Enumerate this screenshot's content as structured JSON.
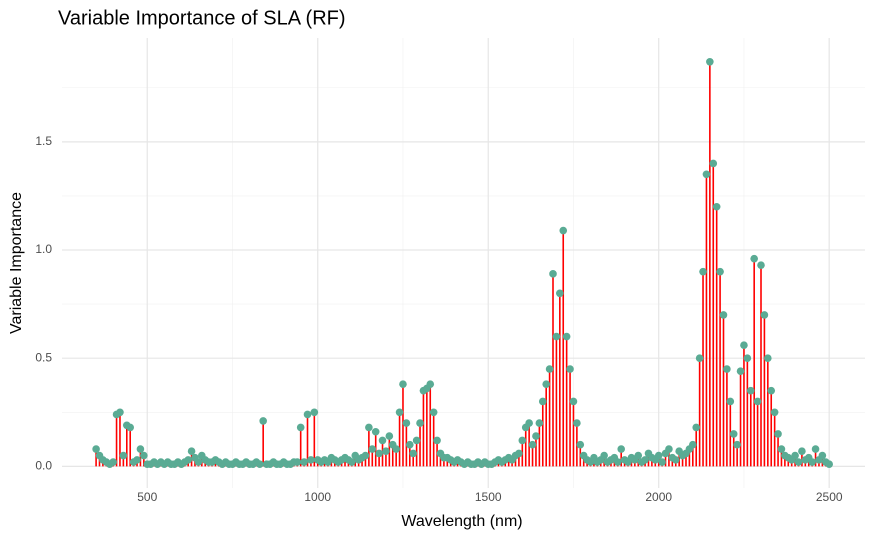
{
  "chart_data": {
    "type": "lollipop",
    "title": "Variable Importance of SLA (RF)",
    "x_label": "Wavelength (nm)",
    "y_label": "Variable Importance",
    "x": [
      350,
      360,
      370,
      380,
      390,
      400,
      410,
      420,
      430,
      440,
      450,
      460,
      470,
      480,
      490,
      500,
      510,
      520,
      530,
      540,
      550,
      560,
      570,
      580,
      590,
      600,
      610,
      620,
      630,
      640,
      650,
      660,
      670,
      680,
      690,
      700,
      710,
      720,
      730,
      740,
      750,
      760,
      770,
      780,
      790,
      800,
      810,
      820,
      830,
      840,
      850,
      860,
      870,
      880,
      890,
      900,
      910,
      920,
      930,
      940,
      950,
      960,
      970,
      980,
      990,
      1000,
      1010,
      1020,
      1030,
      1040,
      1050,
      1060,
      1070,
      1080,
      1090,
      1100,
      1110,
      1120,
      1130,
      1140,
      1150,
      1160,
      1170,
      1180,
      1190,
      1200,
      1210,
      1220,
      1230,
      1240,
      1250,
      1260,
      1270,
      1280,
      1290,
      1300,
      1310,
      1320,
      1330,
      1340,
      1350,
      1360,
      1370,
      1380,
      1390,
      1400,
      1410,
      1420,
      1430,
      1440,
      1450,
      1460,
      1470,
      1480,
      1490,
      1500,
      1510,
      1520,
      1530,
      1540,
      1550,
      1560,
      1570,
      1580,
      1590,
      1600,
      1610,
      1620,
      1630,
      1640,
      1650,
      1660,
      1670,
      1680,
      1690,
      1700,
      1710,
      1720,
      1730,
      1740,
      1750,
      1760,
      1770,
      1780,
      1790,
      1800,
      1810,
      1820,
      1830,
      1840,
      1850,
      1860,
      1870,
      1880,
      1890,
      1900,
      1910,
      1920,
      1930,
      1940,
      1950,
      1960,
      1970,
      1980,
      1990,
      2000,
      2010,
      2020,
      2030,
      2040,
      2050,
      2060,
      2070,
      2080,
      2090,
      2100,
      2110,
      2120,
      2130,
      2140,
      2150,
      2160,
      2170,
      2180,
      2190,
      2200,
      2210,
      2220,
      2230,
      2240,
      2250,
      2260,
      2270,
      2280,
      2290,
      2300,
      2310,
      2320,
      2330,
      2340,
      2350,
      2360,
      2370,
      2380,
      2390,
      2400,
      2410,
      2420,
      2430,
      2440,
      2450,
      2460,
      2470,
      2480,
      2490,
      2500
    ],
    "values": [
      0.08,
      0.05,
      0.03,
      0.02,
      0.01,
      0.02,
      0.24,
      0.25,
      0.05,
      0.19,
      0.18,
      0.02,
      0.03,
      0.08,
      0.05,
      0.01,
      0.01,
      0.02,
      0.01,
      0.02,
      0.01,
      0.02,
      0.01,
      0.01,
      0.02,
      0.01,
      0.02,
      0.03,
      0.07,
      0.04,
      0.02,
      0.05,
      0.03,
      0.02,
      0.02,
      0.03,
      0.02,
      0.01,
      0.02,
      0.01,
      0.01,
      0.02,
      0.01,
      0.01,
      0.02,
      0.01,
      0.01,
      0.02,
      0.01,
      0.21,
      0.01,
      0.01,
      0.02,
      0.01,
      0.01,
      0.02,
      0.01,
      0.01,
      0.02,
      0.02,
      0.18,
      0.02,
      0.24,
      0.03,
      0.25,
      0.03,
      0.02,
      0.03,
      0.02,
      0.04,
      0.03,
      0.02,
      0.03,
      0.04,
      0.03,
      0.02,
      0.05,
      0.03,
      0.04,
      0.05,
      0.18,
      0.08,
      0.16,
      0.06,
      0.12,
      0.07,
      0.14,
      0.1,
      0.08,
      0.25,
      0.38,
      0.2,
      0.1,
      0.06,
      0.12,
      0.2,
      0.35,
      0.36,
      0.38,
      0.25,
      0.12,
      0.06,
      0.04,
      0.04,
      0.03,
      0.02,
      0.03,
      0.02,
      0.01,
      0.02,
      0.01,
      0.01,
      0.02,
      0.01,
      0.02,
      0.01,
      0.01,
      0.02,
      0.03,
      0.02,
      0.03,
      0.04,
      0.03,
      0.05,
      0.06,
      0.12,
      0.18,
      0.2,
      0.1,
      0.14,
      0.2,
      0.3,
      0.38,
      0.45,
      0.89,
      0.6,
      0.8,
      1.09,
      0.6,
      0.45,
      0.3,
      0.2,
      0.1,
      0.05,
      0.03,
      0.02,
      0.04,
      0.02,
      0.03,
      0.05,
      0.02,
      0.03,
      0.04,
      0.02,
      0.08,
      0.03,
      0.02,
      0.04,
      0.03,
      0.05,
      0.02,
      0.03,
      0.06,
      0.04,
      0.03,
      0.05,
      0.02,
      0.06,
      0.08,
      0.04,
      0.03,
      0.07,
      0.05,
      0.06,
      0.08,
      0.1,
      0.18,
      0.5,
      0.9,
      1.35,
      1.87,
      1.4,
      1.2,
      0.9,
      0.7,
      0.45,
      0.3,
      0.15,
      0.1,
      0.44,
      0.56,
      0.5,
      0.35,
      0.96,
      0.3,
      0.93,
      0.7,
      0.5,
      0.35,
      0.25,
      0.15,
      0.08,
      0.05,
      0.04,
      0.03,
      0.05,
      0.02,
      0.07,
      0.03,
      0.04,
      0.02,
      0.08,
      0.03,
      0.05,
      0.02,
      0.01
    ],
    "line_color": "#ff0000",
    "point_color": "#5aab94",
    "xlim": [
      250,
      2605
    ],
    "ylim": [
      -0.1,
      1.98
    ],
    "xticks": [
      500,
      1000,
      1500,
      2000,
      2500
    ],
    "yticks": [
      {
        "value": 0,
        "label": "0.0"
      },
      {
        "value": 0.5,
        "label": "0.5"
      },
      {
        "value": 1,
        "label": "1.0"
      },
      {
        "value": 1.5,
        "label": "1.5"
      }
    ],
    "grid": true
  }
}
